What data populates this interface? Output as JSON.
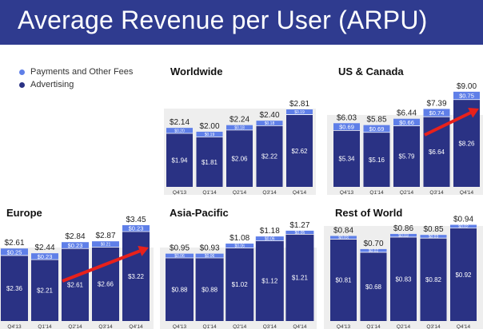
{
  "header": {
    "title": "Average Revenue per User (ARPU)"
  },
  "legend": {
    "items": [
      {
        "label": "Payments and Other Fees",
        "color": "#5f7fe8"
      },
      {
        "label": "Advertising",
        "color": "#2a3284"
      }
    ]
  },
  "colors": {
    "header_bg": "#2f3b8f",
    "advertising": "#2a3284",
    "payments": "#5f7fe8",
    "arrow": "#e8211b",
    "panel_bg": "#eeeeee"
  },
  "chart_data": [
    {
      "type": "bar",
      "title": "Worldwide",
      "categories": [
        "Q4'13",
        "Q1'14",
        "Q2'14",
        "Q3'14",
        "Q4'14"
      ],
      "series": [
        {
          "name": "Advertising",
          "values": [
            1.94,
            1.81,
            2.06,
            2.22,
            2.62
          ],
          "labels": [
            "$1.94",
            "$1.81",
            "$2.06",
            "$2.22",
            "$2.62"
          ]
        },
        {
          "name": "Payments and Other Fees",
          "values": [
            0.2,
            0.19,
            0.18,
            0.18,
            0.19
          ],
          "labels": [
            "$0.20",
            "$0.19",
            "$0.18",
            "$0.18",
            "$0.19"
          ]
        }
      ],
      "totals": [
        "$2.14",
        "$2.00",
        "$2.24",
        "$2.40",
        "$2.81"
      ],
      "stacked": true,
      "arrow": false
    },
    {
      "type": "bar",
      "title": "US & Canada",
      "categories": [
        "Q4'13",
        "Q1'14",
        "Q2'14",
        "Q3'14",
        "Q4'14"
      ],
      "series": [
        {
          "name": "Advertising",
          "values": [
            5.34,
            5.16,
            5.79,
            6.64,
            8.26
          ],
          "labels": [
            "$5.34",
            "$5.16",
            "$5.79",
            "$6.64",
            "$8.26"
          ]
        },
        {
          "name": "Payments and Other Fees",
          "values": [
            0.69,
            0.69,
            0.66,
            0.74,
            0.75
          ],
          "labels": [
            "$0.69",
            "$0.69",
            "$0.66",
            "$0.74",
            "$0.75"
          ]
        }
      ],
      "totals": [
        "$6.03",
        "$5.85",
        "$6.44",
        "$7.39",
        "$9.00"
      ],
      "stacked": true,
      "arrow": true
    },
    {
      "type": "bar",
      "title": "Europe",
      "categories": [
        "Q4'13",
        "Q1'14",
        "Q2'14",
        "Q3'14",
        "Q4'14"
      ],
      "series": [
        {
          "name": "Advertising",
          "values": [
            2.36,
            2.21,
            2.61,
            2.66,
            3.22
          ],
          "labels": [
            "$2.36",
            "$2.21",
            "$2.61",
            "$2.66",
            "$3.22"
          ]
        },
        {
          "name": "Payments and Other Fees",
          "values": [
            0.25,
            0.23,
            0.23,
            0.21,
            0.23
          ],
          "labels": [
            "$0.25",
            "$0.23",
            "$0.23",
            "$0.21",
            "$0.23"
          ]
        }
      ],
      "totals": [
        "$2.61",
        "$2.44",
        "$2.84",
        "$2.87",
        "$3.45"
      ],
      "stacked": true,
      "arrow": true
    },
    {
      "type": "bar",
      "title": "Asia-Pacific",
      "categories": [
        "Q4'13",
        "Q1'14",
        "Q2'14",
        "Q3'14",
        "Q4'14"
      ],
      "series": [
        {
          "name": "Advertising",
          "values": [
            0.88,
            0.88,
            1.02,
            1.12,
            1.21
          ],
          "labels": [
            "$0.88",
            "$0.88",
            "$1.02",
            "$1.12",
            "$1.21"
          ]
        },
        {
          "name": "Payments and Other Fees",
          "values": [
            0.06,
            0.06,
            0.06,
            0.06,
            0.05
          ],
          "labels": [
            "$0.06",
            "$0.06",
            "$0.06",
            "$0.06",
            "$0.05"
          ]
        }
      ],
      "totals": [
        "$0.95",
        "$0.93",
        "$1.08",
        "$1.18",
        "$1.27"
      ],
      "stacked": true,
      "arrow": false
    },
    {
      "type": "bar",
      "title": "Rest of World",
      "categories": [
        "Q4'13",
        "Q1'14",
        "Q2'14",
        "Q3'14",
        "Q4'14"
      ],
      "series": [
        {
          "name": "Advertising",
          "values": [
            0.81,
            0.68,
            0.83,
            0.82,
            0.92
          ],
          "labels": [
            "$0.81",
            "$0.68",
            "$0.83",
            "$0.82",
            "$0.92"
          ]
        },
        {
          "name": "Payments and Other Fees",
          "values": [
            0.03,
            0.02,
            0.03,
            0.03,
            0.02
          ],
          "labels": [
            "$0.03",
            "$0.02",
            "$0.03",
            "$0.03",
            "$0.02"
          ]
        }
      ],
      "totals": [
        "$0.84",
        "$0.70",
        "$0.86",
        "$0.85",
        "$0.94"
      ],
      "stacked": true,
      "arrow": false
    }
  ]
}
